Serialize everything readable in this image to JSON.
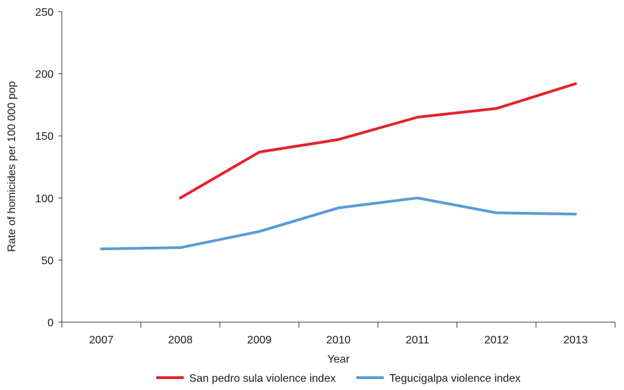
{
  "chart_data": {
    "type": "line",
    "categories": [
      "2007",
      "2008",
      "2009",
      "2010",
      "2011",
      "2012",
      "2013"
    ],
    "series": [
      {
        "name": "San pedro sula violence index",
        "color": "#e3222b",
        "values": [
          null,
          100,
          137,
          147,
          165,
          172,
          192
        ]
      },
      {
        "name": "Tegucigalpa violence index",
        "color": "#5b9bd5",
        "values": [
          59,
          60,
          73,
          92,
          100,
          88,
          87
        ]
      }
    ],
    "title": "",
    "xlabel": "Year",
    "ylabel": "Rate of homicides per 100 000 pop",
    "ylim": [
      0,
      250
    ],
    "yticks": [
      0,
      50,
      100,
      150,
      200,
      250
    ],
    "grid": false,
    "legend_position": "bottom"
  }
}
